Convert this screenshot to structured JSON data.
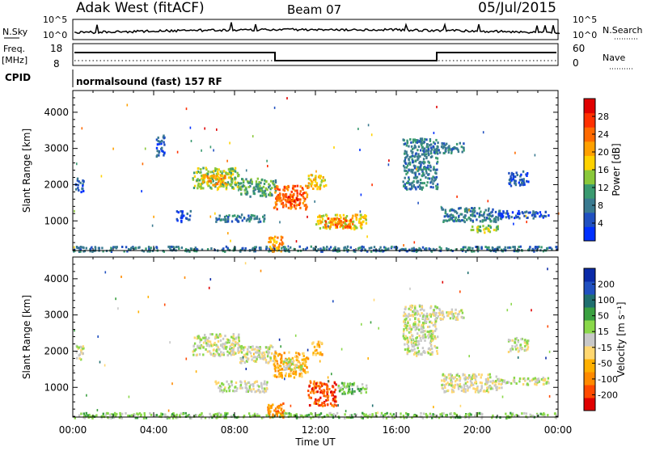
{
  "header": {
    "station": "Adak West (fitACF)",
    "beam": "Beam 07",
    "date": "05/Jul/2015"
  },
  "rows": {
    "nsky_label": "N.Sky",
    "nsky_ticks": [
      "10^5",
      "10^0"
    ],
    "nsearch_label": "N.Search",
    "nsearch_ticks": [
      "10^5",
      "10^0"
    ],
    "freq_label": "Freq.",
    "freq_unit": "[MHz]",
    "freq_ticks": [
      "18",
      "8"
    ],
    "nave_label": "Nave",
    "nave_ticks": [
      "60",
      "0"
    ],
    "cpid_label": "CPID",
    "cpid_text": "normalsound (fast) 157 RF"
  },
  "chart_data": [
    {
      "type": "heatmap",
      "name": "power",
      "ylabel": "Slant Range [km]",
      "yticks": [
        1000,
        2000,
        3000,
        4000
      ],
      "ylim": [
        180,
        4600
      ],
      "xlim": [
        0,
        24
      ],
      "colorbar": {
        "label": "Power [dB]",
        "ticks": [
          "4",
          "8",
          "12",
          "16",
          "20",
          "24",
          "28"
        ],
        "colors": [
          "#0030ff",
          "#2050c0",
          "#3a7a90",
          "#3a9a70",
          "#8ac83a",
          "#ffd200",
          "#ffa000",
          "#ff6a00",
          "#ff3000",
          "#e00000"
        ]
      },
      "regions": [
        {
          "t": [
            0.0,
            24.0
          ],
          "r": [
            180,
            320
          ],
          "c": 2
        },
        {
          "t": [
            0.1,
            0.5
          ],
          "r": [
            1800,
            2200
          ],
          "c": 1
        },
        {
          "t": [
            4.1,
            4.5
          ],
          "r": [
            2800,
            3400
          ],
          "c": 1
        },
        {
          "t": [
            5.9,
            8.2
          ],
          "r": [
            1900,
            2500
          ],
          "c": 4
        },
        {
          "t": [
            6.3,
            7.6
          ],
          "r": [
            2000,
            2300
          ],
          "c": 6
        },
        {
          "t": [
            8.2,
            10.0
          ],
          "r": [
            1700,
            2200
          ],
          "c": 3
        },
        {
          "t": [
            9.9,
            11.6
          ],
          "r": [
            1350,
            2000
          ],
          "c": 7
        },
        {
          "t": [
            10.4,
            11.2
          ],
          "r": [
            1500,
            1700
          ],
          "c": 8
        },
        {
          "t": [
            11.6,
            12.5
          ],
          "r": [
            1900,
            2300
          ],
          "c": 5
        },
        {
          "t": [
            12.0,
            14.5
          ],
          "r": [
            800,
            1200
          ],
          "c": 5
        },
        {
          "t": [
            12.4,
            13.8
          ],
          "r": [
            850,
            1100
          ],
          "c": 7
        },
        {
          "t": [
            9.6,
            10.4
          ],
          "r": [
            180,
            600
          ],
          "c": 6
        },
        {
          "t": [
            7.0,
            9.6
          ],
          "r": [
            1000,
            1200
          ],
          "c": 2
        },
        {
          "t": [
            5.1,
            5.8
          ],
          "r": [
            1000,
            1300
          ],
          "c": 1
        },
        {
          "t": [
            16.3,
            18.0
          ],
          "r": [
            1900,
            3300
          ],
          "c": 2
        },
        {
          "t": [
            18.0,
            19.3
          ],
          "r": [
            2900,
            3200
          ],
          "c": 2
        },
        {
          "t": [
            18.2,
            21.2
          ],
          "r": [
            1000,
            1400
          ],
          "c": 2
        },
        {
          "t": [
            19.6,
            21.0
          ],
          "r": [
            700,
            900
          ],
          "c": 4
        },
        {
          "t": [
            21.0,
            23.5
          ],
          "r": [
            1100,
            1300
          ],
          "c": 1
        },
        {
          "t": [
            21.5,
            22.5
          ],
          "r": [
            2000,
            2400
          ],
          "c": 1
        }
      ]
    },
    {
      "type": "heatmap",
      "name": "velocity",
      "ylabel": "Slant Range [km]",
      "yticks": [
        1000,
        2000,
        3000,
        4000
      ],
      "ylim": [
        180,
        4600
      ],
      "xlim": [
        0,
        24
      ],
      "xticks": [
        "00:00",
        "04:00",
        "08:00",
        "12:00",
        "16:00",
        "20:00",
        "00:00"
      ],
      "xlabel": "Time UT",
      "colorbar": {
        "label": "Velocity [m s⁻¹]",
        "ticks": [
          "-200",
          "-100",
          "-50",
          "-15",
          "15",
          "50",
          "100",
          "200"
        ],
        "colors": [
          "#e00000",
          "#ff4a00",
          "#ff8a00",
          "#ffb000",
          "#ffd770",
          "#c8c8c8",
          "#8ad84a",
          "#3aa040",
          "#1f6f6f",
          "#2050c0",
          "#0a2aa8"
        ]
      },
      "regions": [
        {
          "t": [
            0.0,
            24.0
          ],
          "r": [
            180,
            320
          ],
          "c": 6
        },
        {
          "t": [
            0.1,
            0.5
          ],
          "r": [
            1800,
            2200
          ],
          "c": 5
        },
        {
          "t": [
            5.9,
            8.2
          ],
          "r": [
            1900,
            2500
          ],
          "c": 5
        },
        {
          "t": [
            8.2,
            10.0
          ],
          "r": [
            1700,
            2200
          ],
          "c": 5
        },
        {
          "t": [
            9.9,
            11.6
          ],
          "r": [
            1300,
            2000
          ],
          "c": 3
        },
        {
          "t": [
            10.3,
            11.3
          ],
          "r": [
            1500,
            1800
          ],
          "c": 5
        },
        {
          "t": [
            11.8,
            12.3
          ],
          "r": [
            1900,
            2300
          ],
          "c": 3
        },
        {
          "t": [
            11.6,
            13.0
          ],
          "r": [
            500,
            1200
          ],
          "c": 1
        },
        {
          "t": [
            13.0,
            14.5
          ],
          "r": [
            850,
            1150
          ],
          "c": 6
        },
        {
          "t": [
            9.6,
            10.4
          ],
          "r": [
            180,
            600
          ],
          "c": 2
        },
        {
          "t": [
            7.0,
            9.6
          ],
          "r": [
            900,
            1200
          ],
          "c": 5
        },
        {
          "t": [
            16.3,
            18.0
          ],
          "r": [
            1900,
            3300
          ],
          "c": 5
        },
        {
          "t": [
            18.0,
            19.3
          ],
          "r": [
            2900,
            3200
          ],
          "c": 5
        },
        {
          "t": [
            18.2,
            21.2
          ],
          "r": [
            900,
            1400
          ],
          "c": 5
        },
        {
          "t": [
            21.0,
            23.5
          ],
          "r": [
            1100,
            1300
          ],
          "c": 5
        },
        {
          "t": [
            21.5,
            22.5
          ],
          "r": [
            2000,
            2400
          ],
          "c": 5
        }
      ]
    }
  ]
}
